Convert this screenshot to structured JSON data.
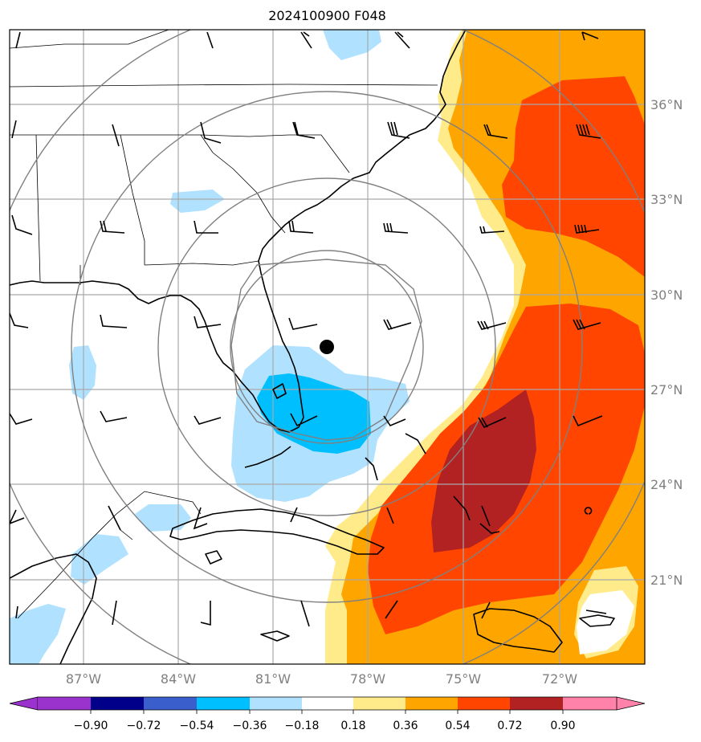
{
  "title": "2024100900 F048",
  "lon_ticks": [
    "87°W",
    "84°W",
    "81°W",
    "78°W",
    "75°W",
    "72°W"
  ],
  "lat_ticks": [
    "36°N",
    "33°N",
    "30°N",
    "27°N",
    "24°N",
    "21°N"
  ],
  "colorbar": {
    "labels": [
      "−0.90",
      "−0.72",
      "−0.54",
      "−0.36",
      "−0.18",
      "0.18",
      "0.36",
      "0.54",
      "0.72",
      "0.90"
    ],
    "colors": [
      "#9a32cd",
      "#00008b",
      "#3a5fcd",
      "#00bfff",
      "#b0e2ff",
      "#ffffff",
      "#ffeb8a",
      "#ffa500",
      "#ff4500",
      "#b22222",
      "#ff82ab"
    ]
  },
  "colors": {
    "fill_light_blue": "#b0e2ff",
    "fill_blue": "#00bfff",
    "fill_yellow": "#ffeb8a",
    "fill_orange": "#ffa500",
    "fill_red_orange": "#ff4500",
    "fill_dark_red": "#b22222",
    "grid": "#a9a9a9",
    "range_rings": "#808080",
    "tick_labels": "#808080"
  },
  "storm_center_marker": "black-dot",
  "range_ring_count": 4,
  "wind_barbs": "black"
}
